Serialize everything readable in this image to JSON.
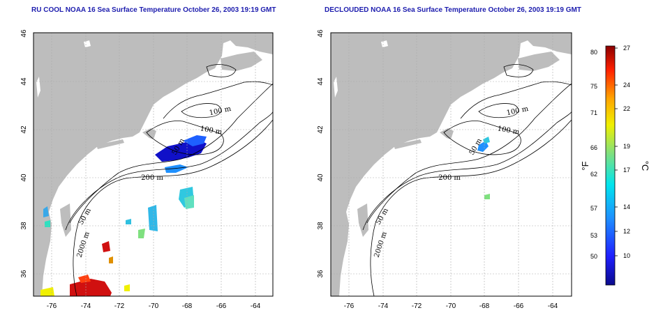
{
  "titles": {
    "left": "RU COOL NOAA 16 Sea Surface Temperature October 26, 2003 19:19 GMT",
    "right": "DECLOUDED NOAA 16 Sea Surface Temperature October 26, 2003 19:19 GMT"
  },
  "axes": {
    "lon_ticks": [
      "-76",
      "-74",
      "-72",
      "-70",
      "-68",
      "-66",
      "-64"
    ],
    "lat_ticks": [
      "46",
      "44",
      "42",
      "40",
      "38",
      "36"
    ]
  },
  "contour_labels": {
    "left": [
      "100 m",
      "100 m",
      "50 m",
      "200 m",
      "50 m",
      "2000 m"
    ],
    "right": [
      "100 m",
      "100 m",
      "50 m",
      "200 m",
      "50 m",
      "2000 m"
    ]
  },
  "colorbar": {
    "unit_left": "°F",
    "unit_right": "°C",
    "fahrenheit_labels": [
      "80",
      "75",
      "71",
      "66",
      "62",
      "57",
      "53",
      "50"
    ],
    "celsius_labels": [
      "27",
      "24",
      "22",
      "19",
      "17",
      "14",
      "12",
      "10"
    ]
  },
  "colors": {
    "land": "#bdbdbd",
    "ocean": "#ffffff",
    "title": "#1d1dae",
    "grid": "#aaaaaa"
  }
}
